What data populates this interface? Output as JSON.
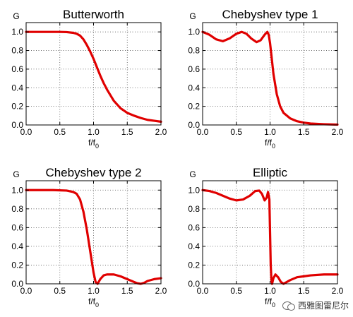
{
  "chart_data": [
    {
      "type": "line",
      "title": "Butterworth",
      "xlabel": "f/f0",
      "ylabel": "G",
      "xlim": [
        0.0,
        2.0
      ],
      "ylim": [
        0.0,
        1.1
      ],
      "xticks": [
        "0.0",
        "0.5",
        "1.0",
        "1.5",
        "2.0"
      ],
      "yticks": [
        "0.0",
        "0.2",
        "0.4",
        "0.6",
        "0.8",
        "1.0"
      ],
      "grid": true,
      "line_color": "#e00000",
      "x": [
        0.0,
        0.2,
        0.4,
        0.5,
        0.6,
        0.7,
        0.75,
        0.8,
        0.85,
        0.9,
        0.95,
        1.0,
        1.05,
        1.1,
        1.15,
        1.2,
        1.25,
        1.3,
        1.4,
        1.5,
        1.6,
        1.7,
        1.8,
        1.9,
        2.0
      ],
      "y": [
        1.0,
        1.0,
        1.0,
        1.0,
        0.998,
        0.99,
        0.98,
        0.96,
        0.92,
        0.86,
        0.79,
        0.71,
        0.62,
        0.53,
        0.45,
        0.38,
        0.32,
        0.26,
        0.18,
        0.13,
        0.1,
        0.075,
        0.055,
        0.045,
        0.035
      ]
    },
    {
      "type": "line",
      "title": "Chebyshev type 1",
      "xlabel": "f/f0",
      "ylabel": "G",
      "xlim": [
        0.0,
        2.0
      ],
      "ylim": [
        0.0,
        1.1
      ],
      "xticks": [
        "0.0",
        "0.5",
        "1.0",
        "1.5",
        "2.0"
      ],
      "yticks": [
        "0.0",
        "0.2",
        "0.4",
        "0.6",
        "0.8",
        "1.0"
      ],
      "grid": true,
      "line_color": "#e00000",
      "x": [
        0.0,
        0.1,
        0.2,
        0.3,
        0.4,
        0.5,
        0.58,
        0.65,
        0.72,
        0.8,
        0.86,
        0.92,
        0.96,
        0.98,
        1.0,
        1.02,
        1.05,
        1.1,
        1.15,
        1.2,
        1.3,
        1.4,
        1.5,
        1.6,
        1.8,
        2.0
      ],
      "y": [
        1.0,
        0.97,
        0.92,
        0.9,
        0.93,
        0.98,
        1.0,
        0.98,
        0.93,
        0.89,
        0.91,
        0.97,
        1.0,
        0.97,
        0.88,
        0.75,
        0.55,
        0.33,
        0.2,
        0.13,
        0.07,
        0.04,
        0.025,
        0.015,
        0.008,
        0.004
      ]
    },
    {
      "type": "line",
      "title": "Chebyshev type 2",
      "xlabel": "f/f0",
      "ylabel": "G",
      "xlim": [
        0.0,
        2.0
      ],
      "ylim": [
        0.0,
        1.1
      ],
      "xticks": [
        "0.0",
        "0.5",
        "1.0",
        "1.5",
        "2.0"
      ],
      "yticks": [
        "0.0",
        "0.2",
        "0.4",
        "0.6",
        "0.8",
        "1.0"
      ],
      "grid": true,
      "line_color": "#e00000",
      "x": [
        0.0,
        0.2,
        0.4,
        0.6,
        0.7,
        0.75,
        0.8,
        0.85,
        0.9,
        0.95,
        1.0,
        1.03,
        1.06,
        1.1,
        1.15,
        1.2,
        1.3,
        1.4,
        1.5,
        1.6,
        1.65,
        1.7,
        1.75,
        1.8,
        1.9,
        2.0
      ],
      "y": [
        1.0,
        1.0,
        1.0,
        0.995,
        0.98,
        0.96,
        0.9,
        0.77,
        0.58,
        0.35,
        0.12,
        0.02,
        0.0,
        0.05,
        0.09,
        0.1,
        0.1,
        0.08,
        0.05,
        0.02,
        0.006,
        0.0,
        0.01,
        0.03,
        0.05,
        0.06
      ]
    },
    {
      "type": "line",
      "title": "Elliptic",
      "xlabel": "f/f0",
      "ylabel": "G",
      "xlim": [
        0.0,
        2.0
      ],
      "ylim": [
        0.0,
        1.1
      ],
      "xticks": [
        "0.0",
        "0.5",
        "1.0",
        "1.5",
        "2.0"
      ],
      "yticks": [
        "0.0",
        "0.2",
        "0.4",
        "0.6",
        "0.8",
        "1.0"
      ],
      "grid": true,
      "line_color": "#e00000",
      "x": [
        0.0,
        0.1,
        0.2,
        0.3,
        0.4,
        0.5,
        0.6,
        0.7,
        0.78,
        0.84,
        0.88,
        0.92,
        0.95,
        0.97,
        0.99,
        1.0,
        1.01,
        1.02,
        1.03,
        1.05,
        1.08,
        1.12,
        1.16,
        1.2,
        1.3,
        1.4,
        1.5,
        1.6,
        1.8,
        2.0
      ],
      "y": [
        1.0,
        0.99,
        0.97,
        0.94,
        0.91,
        0.89,
        0.9,
        0.94,
        0.99,
        0.995,
        0.96,
        0.89,
        0.92,
        0.98,
        0.9,
        0.55,
        0.2,
        0.05,
        0.0,
        0.06,
        0.1,
        0.07,
        0.02,
        0.0,
        0.04,
        0.07,
        0.08,
        0.09,
        0.1,
        0.1
      ]
    }
  ],
  "watermark": {
    "icon": "wechat-icon",
    "text": "西雅图雷尼尔"
  }
}
